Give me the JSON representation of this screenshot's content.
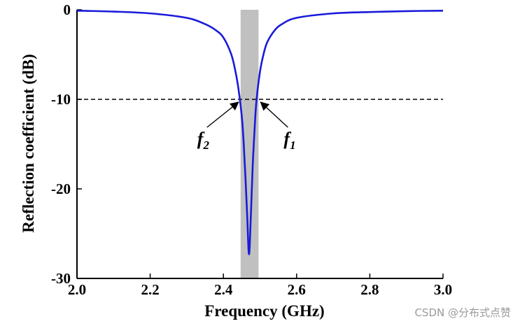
{
  "chart_data": {
    "type": "line",
    "title": "",
    "xlabel": "Frequency (GHz)",
    "ylabel": "Reflection coefficient (dB)",
    "xlim": [
      2.0,
      3.0
    ],
    "ylim": [
      -30,
      0
    ],
    "x_ticks": [
      "2.0",
      "2.2",
      "2.4",
      "2.6",
      "2.8",
      "3.0"
    ],
    "y_ticks": [
      "0",
      "-10",
      "-20",
      "-30"
    ],
    "grid": false,
    "series": [
      {
        "color": "#1a1adb",
        "x": [
          2.0,
          2.1,
          2.2,
          2.3,
          2.35,
          2.38,
          2.4,
          2.42,
          2.43,
          2.44,
          2.45,
          2.455,
          2.46,
          2.465,
          2.47,
          2.475,
          2.48,
          2.485,
          2.49,
          2.5,
          2.51,
          2.52,
          2.54,
          2.56,
          2.6,
          2.7,
          2.8,
          2.9,
          3.0
        ],
        "y": [
          -0.1,
          -0.2,
          -0.4,
          -0.9,
          -1.6,
          -2.3,
          -3.1,
          -4.8,
          -6.3,
          -8.5,
          -11.8,
          -14.6,
          -18.5,
          -23.0,
          -27.3,
          -23.0,
          -17.5,
          -13.5,
          -10.3,
          -6.9,
          -4.9,
          -3.6,
          -2.3,
          -1.6,
          -0.9,
          -0.4,
          -0.25,
          -0.15,
          -0.1
        ]
      }
    ],
    "reference_line": {
      "y": -10,
      "style": "dashed"
    },
    "shaded_band": {
      "x_start": 2.447,
      "x_end": 2.496,
      "color": "#c0c0c0"
    },
    "annotations": [
      {
        "label": "f",
        "subscript": "2",
        "arrow_to": {
          "x": 2.447,
          "y": -10
        }
      },
      {
        "label": "f",
        "subscript": "1",
        "arrow_to": {
          "x": 2.496,
          "y": -10
        }
      }
    ]
  },
  "watermark": "CSDN @分布式点赞"
}
